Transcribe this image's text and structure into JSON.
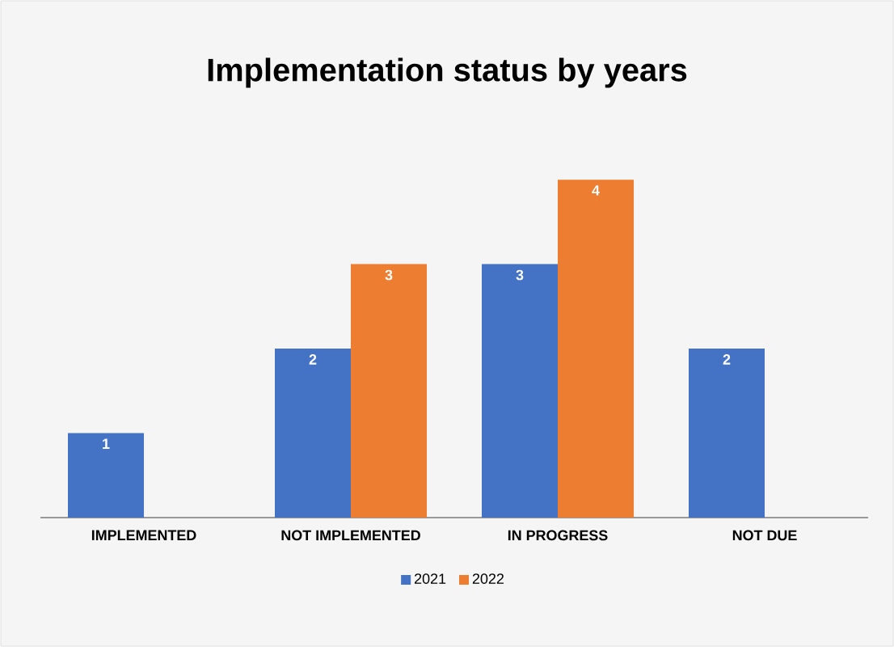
{
  "chart_data": {
    "type": "bar",
    "title": "Implementation status by years",
    "categories": [
      "IMPLEMENTED",
      "NOT IMPLEMENTED",
      "IN PROGRESS",
      "NOT DUE"
    ],
    "series": [
      {
        "name": "2021",
        "color": "#4472c4",
        "values": [
          1,
          2,
          3,
          2
        ]
      },
      {
        "name": "2022",
        "color": "#ed7d31",
        "values": [
          null,
          3,
          4,
          null
        ]
      }
    ],
    "tick_labels": "x",
    "data_labels": true,
    "legend": "bottom"
  }
}
